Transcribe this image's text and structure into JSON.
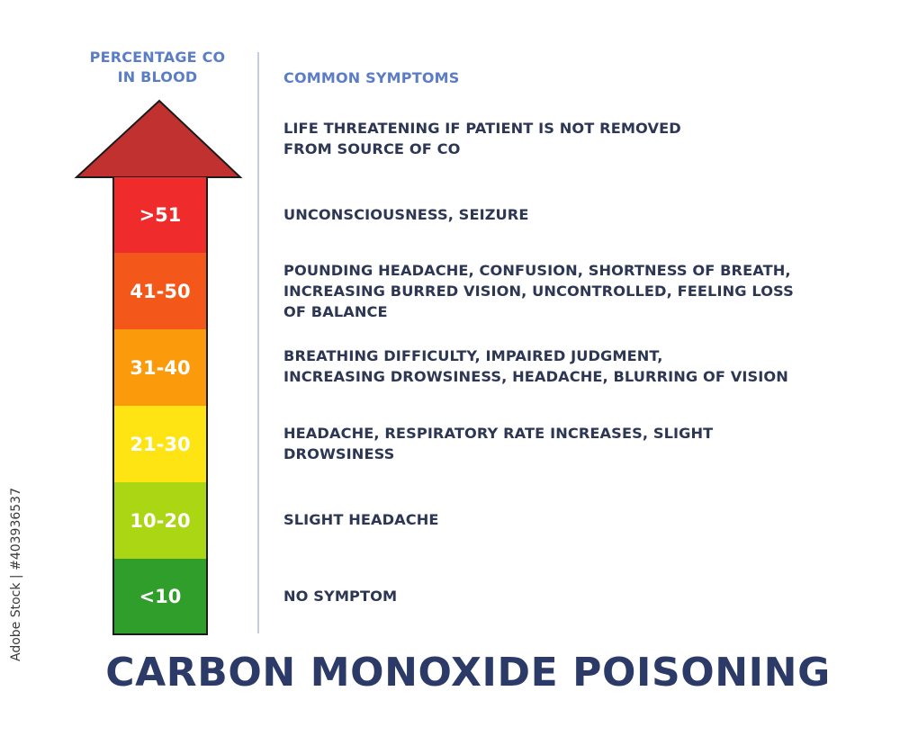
{
  "header": {
    "left_line1": "PERCENTAGE CO",
    "left_line2": "IN BLOOD",
    "right": "COMMON SYMPTOMS"
  },
  "colors": {
    "arrow_head": "#c0312f",
    "band_red": "#ef2b2b",
    "band_orange_red": "#f4571a",
    "band_orange": "#fb9a0a",
    "band_yellow": "#ffe414",
    "band_lime": "#abd614",
    "band_green": "#2f9e2b",
    "text_dark": "#2d3754",
    "header_blue": "#5b7dc8"
  },
  "levels": [
    {
      "range": ">51",
      "symptoms": [
        "UNCONSCIOUSNESS, SEIZURE"
      ]
    },
    {
      "range": "41-50",
      "symptoms": [
        "POUNDING HEADACHE, CONFUSION, SHORTNESS OF BREATH,",
        "INCREASING BURRED VISION, UNCONTROLLED, FEELING LOSS",
        "OF BALANCE"
      ]
    },
    {
      "range": "31-40",
      "symptoms": [
        "BREATHING DIFFICULTY, IMPAIRED JUDGMENT,",
        "INCREASING DROWSINESS, HEADACHE, BLURRING OF VISION"
      ]
    },
    {
      "range": "21-30",
      "symptoms": [
        "HEADACHE, RESPIRATORY RATE INCREASES, SLIGHT",
        "DROWSINESS"
      ]
    },
    {
      "range": "10-20",
      "symptoms": [
        "SLIGHT HEADACHE"
      ]
    },
    {
      "range": "<10",
      "symptoms": [
        "NO SYMPTOM"
      ]
    }
  ],
  "top_symptom": [
    "LIFE THREATENING IF PATIENT IS NOT REMOVED",
    "FROM SOURCE OF CO"
  ],
  "title": "CARBON MONOXIDE POISONING",
  "stock_id": "Adobe Stock | #403936537"
}
